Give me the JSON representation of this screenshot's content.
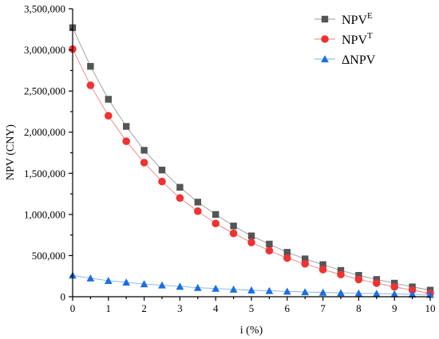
{
  "chart_data": {
    "type": "line",
    "xlabel": "i (%)",
    "ylabel": "NPV (CNY)",
    "xlim": [
      0,
      10
    ],
    "ylim": [
      0,
      3500000
    ],
    "grid": false,
    "legend_position": "top-right",
    "x_ticks": [
      0,
      1,
      2,
      3,
      4,
      5,
      6,
      7,
      8,
      9,
      10
    ],
    "x_tick_labels": [
      "0",
      "1",
      "2",
      "3",
      "4",
      "5",
      "6",
      "7",
      "8",
      "9",
      "10"
    ],
    "y_ticks": [
      0,
      500000,
      1000000,
      1500000,
      2000000,
      2500000,
      3000000,
      3500000
    ],
    "y_tick_labels": [
      "0",
      "500,000",
      "1,000,000",
      "1,500,000",
      "2,000,000",
      "2,500,000",
      "3,000,000",
      "3,500,000"
    ],
    "x": [
      0,
      0.5,
      1,
      1.5,
      2,
      2.5,
      3,
      3.5,
      4,
      4.5,
      5,
      5.5,
      6,
      6.5,
      7,
      7.5,
      8,
      8.5,
      9,
      9.5,
      10
    ],
    "series": [
      {
        "name": "NPV",
        "name_sup": "E",
        "marker": "square",
        "color": "#555555",
        "line_color": "#9a9a9a",
        "values": [
          3270000,
          2800000,
          2400000,
          2070000,
          1780000,
          1540000,
          1330000,
          1150000,
          1000000,
          860000,
          740000,
          640000,
          540000,
          460000,
          390000,
          320000,
          260000,
          210000,
          165000,
          120000,
          80000
        ]
      },
      {
        "name": "NPV",
        "name_sup": "T",
        "marker": "circle",
        "color": "#ee3333",
        "line_color": "#f08080",
        "values": [
          3010000,
          2570000,
          2200000,
          1890000,
          1630000,
          1400000,
          1200000,
          1040000,
          890000,
          770000,
          660000,
          560000,
          470000,
          400000,
          330000,
          270000,
          210000,
          165000,
          120000,
          80000,
          40000
        ]
      },
      {
        "name": "ΔNPV",
        "name_sup": "",
        "marker": "triangle",
        "color": "#1a6fdf",
        "line_color": "#7fb0ef",
        "values": [
          260000,
          225000,
          195000,
          175000,
          155000,
          140000,
          125000,
          110000,
          100000,
          90000,
          80000,
          72000,
          65000,
          58000,
          52000,
          47000,
          42000,
          38000,
          34000,
          30000,
          25000
        ]
      }
    ]
  }
}
